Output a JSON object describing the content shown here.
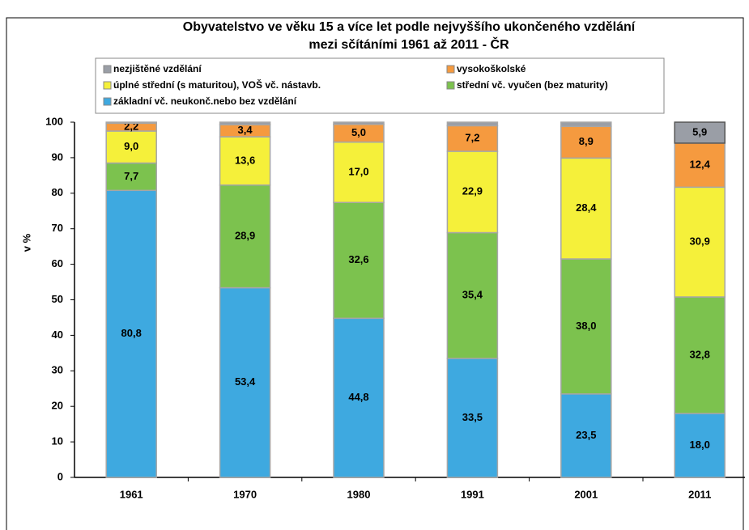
{
  "chart_data": {
    "type": "stacked_bar",
    "title": "Obyvatelstvo ve věku 15 a více let podle nejvyššího ukončeného vzdělání",
    "subtitle": "mezi sčítáními 1961 až 2011 - ČR",
    "y_label": "v %",
    "categories": [
      "1961",
      "1970",
      "1980",
      "1991",
      "2001",
      "2011"
    ],
    "series": [
      {
        "name": "základní vč. neukonč.nebo bez vzdělání",
        "color": "#3ea9e0",
        "values": [
          80.8,
          53.4,
          44.8,
          33.5,
          23.5,
          18.0
        ],
        "value_labels": [
          "80,8",
          "53,4",
          "44,8",
          "33,5",
          "23,5",
          "18,0"
        ]
      },
      {
        "name": "střední vč. vyučen (bez maturity)",
        "color": "#7cc24e",
        "values": [
          7.7,
          28.9,
          32.6,
          35.4,
          38.0,
          32.8
        ],
        "value_labels": [
          "7,7",
          "28,9",
          "32,6",
          "35,4",
          "38,0",
          "32,8"
        ]
      },
      {
        "name": "úplné střední (s maturitou), VOŠ vč. nástavb.",
        "color": "#f5f03a",
        "values": [
          9.0,
          13.6,
          17.0,
          22.9,
          28.4,
          30.9
        ],
        "value_labels": [
          "9,0",
          "13,6",
          "17,0",
          "22,9",
          "28,4",
          "30,9"
        ]
      },
      {
        "name": "vysokoškolské",
        "color": "#f59a3f",
        "values": [
          2.2,
          3.4,
          5.0,
          7.2,
          8.9,
          12.4
        ],
        "value_labels": [
          "2,2",
          "3,4",
          "5,0",
          "7,2",
          "8,9",
          "12,4"
        ]
      },
      {
        "name": "nezjištěné vzdělání",
        "color": "#9a9ea6",
        "values": [
          0.3,
          0.7,
          0.6,
          1.0,
          1.2,
          5.9
        ],
        "value_labels": [
          null,
          null,
          null,
          null,
          null,
          "5,9"
        ]
      }
    ],
    "ylim": [
      0,
      100
    ],
    "yticks": [
      0,
      10,
      20,
      30,
      40,
      50,
      60,
      70,
      80,
      90,
      100
    ],
    "grid": false
  }
}
